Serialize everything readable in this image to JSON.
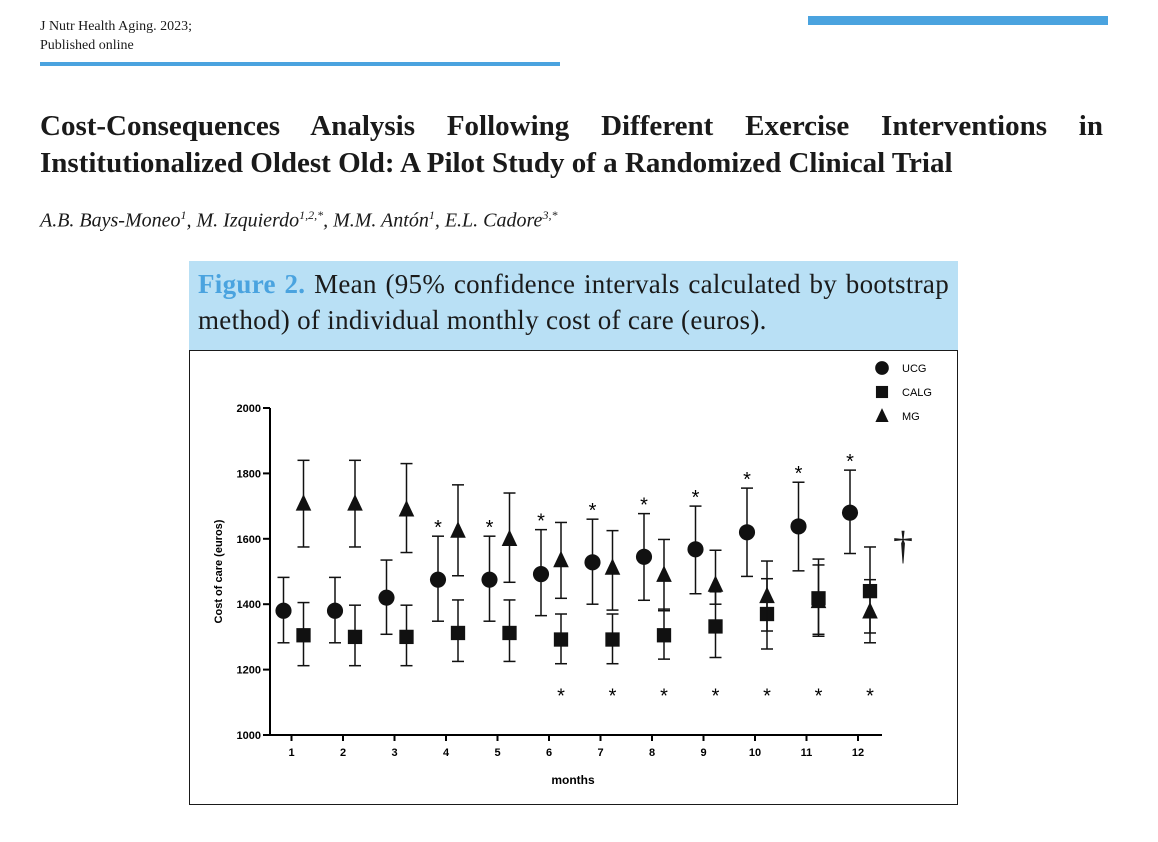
{
  "journal": {
    "line1": "J Nutr Health Aging. 2023;",
    "line2": "Published online"
  },
  "title": "Cost-Consequences Analysis Following Different Exercise Interventions in Institutionalized Oldest Old: A Pilot Study of a Randomized Clinical Trial",
  "authors": [
    {
      "name": "A.B. Bays-Moneo",
      "sup": "1",
      "sep": ", "
    },
    {
      "name": "M. Izquierdo",
      "sup": "1,2,*",
      "sep": ", "
    },
    {
      "name": "M.M. Antón",
      "sup": "1",
      "sep": ", "
    },
    {
      "name": "E.L. Cadore",
      "sup": "3,*",
      "sep": ""
    }
  ],
  "figure": {
    "label": "Figure 2.",
    "caption": "Mean (95% confidence intervals calculated by bootstrap method) of individual monthly cost of care (euros).",
    "dagger": "†"
  },
  "chart_data": {
    "type": "scatter",
    "xlabel": "months",
    "ylabel": "Cost of care (euros)",
    "ylim": [
      1000,
      2000
    ],
    "yticks": [
      1000,
      1200,
      1400,
      1600,
      1800,
      2000
    ],
    "categories": [
      "1",
      "2",
      "3",
      "4",
      "5",
      "6",
      "7",
      "8",
      "9",
      "10",
      "11",
      "12"
    ],
    "legend_position": "top-right",
    "marker_color": "#111111",
    "series": [
      {
        "name": "UCG",
        "marker": "circle",
        "values": [
          1380,
          1380,
          1420,
          1475,
          1475,
          1492,
          1528,
          1545,
          1568,
          1620,
          1638,
          1680
        ],
        "ci_low": [
          1282,
          1282,
          1308,
          1348,
          1348,
          1365,
          1400,
          1412,
          1432,
          1485,
          1502,
          1555
        ],
        "ci_high": [
          1482,
          1482,
          1535,
          1608,
          1608,
          1628,
          1660,
          1677,
          1700,
          1755,
          1773,
          1810
        ],
        "significance": "above"
      },
      {
        "name": "CALG",
        "marker": "square",
        "values": [
          1305,
          1300,
          1300,
          1312,
          1312,
          1292,
          1292,
          1305,
          1332,
          1370,
          1418,
          1440
        ],
        "ci_low": [
          1212,
          1212,
          1212,
          1225,
          1225,
          1218,
          1218,
          1232,
          1237,
          1263,
          1308,
          1312
        ],
        "ci_high": [
          1405,
          1397,
          1397,
          1413,
          1413,
          1370,
          1370,
          1385,
          1438,
          1478,
          1520,
          1575
        ],
        "significance": "below"
      },
      {
        "name": "MG",
        "marker": "triangle",
        "values": [
          1708,
          1708,
          1690,
          1625,
          1600,
          1535,
          1512,
          1490,
          1460,
          1425,
          1410,
          1378
        ],
        "ci_low": [
          1575,
          1575,
          1558,
          1487,
          1467,
          1418,
          1382,
          1380,
          1400,
          1318,
          1302,
          1282
        ],
        "ci_high": [
          1840,
          1840,
          1830,
          1765,
          1740,
          1650,
          1625,
          1598,
          1565,
          1532,
          1538,
          1475
        ]
      }
    ],
    "significance_marker": "*",
    "significance_months_above": [
      4,
      5,
      6,
      7,
      8,
      9,
      10,
      11,
      12
    ],
    "significance_months_below": [
      6,
      7,
      8,
      9,
      10,
      11,
      12
    ]
  }
}
